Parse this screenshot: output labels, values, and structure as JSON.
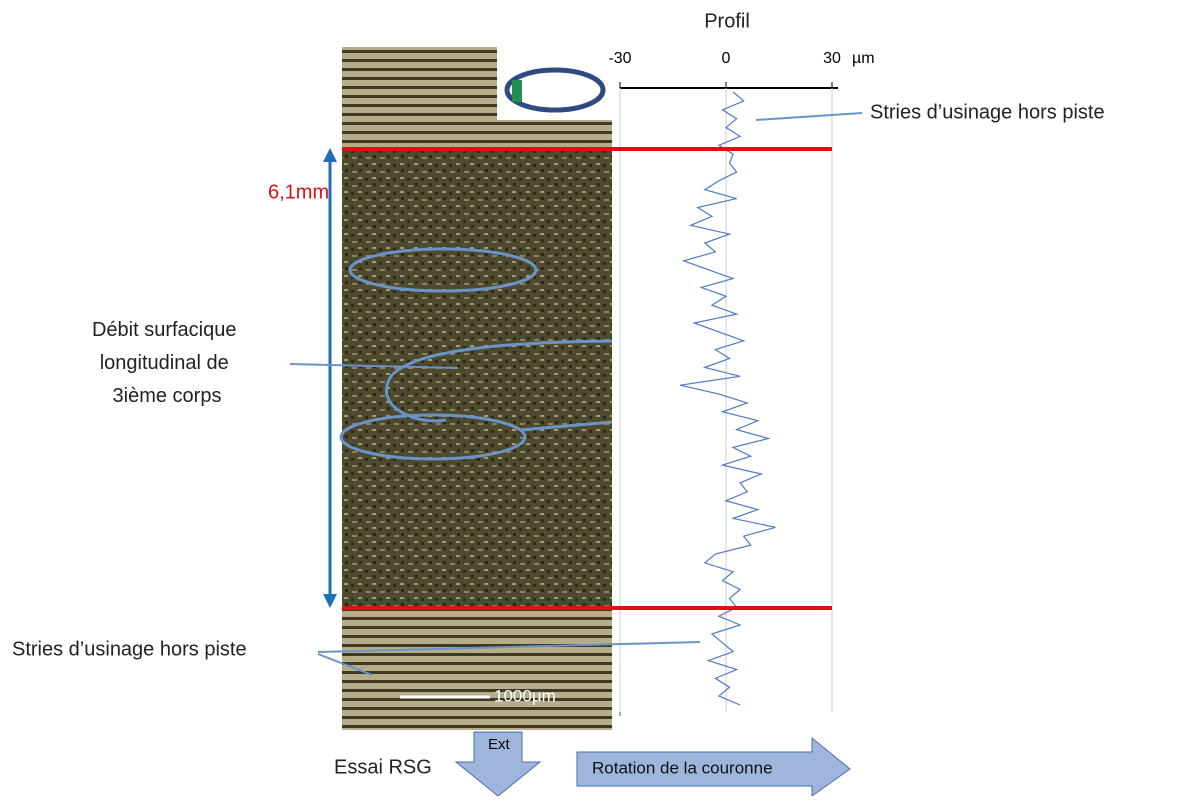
{
  "chart_data": {
    "type": "line",
    "title": "Profil",
    "x_unit": "µm",
    "xlim": [
      -30,
      30
    ],
    "xticks": [
      -30,
      0,
      30
    ],
    "grid": true,
    "color": "#4f7ac7",
    "values": [
      2,
      5,
      -1,
      3,
      0,
      4,
      -2,
      2,
      1,
      3,
      -2,
      -6,
      3,
      -8,
      -4,
      -10,
      1,
      -6,
      -3,
      -12,
      -5,
      2,
      -7,
      0,
      -4,
      3,
      -9,
      -2,
      5,
      -3,
      1,
      -6,
      4,
      -13,
      -2,
      6,
      -1,
      9,
      3,
      12,
      2,
      7,
      -1,
      10,
      4,
      6,
      0,
      9,
      2,
      14,
      5,
      7,
      -3,
      -6,
      2,
      -1,
      4,
      1,
      3,
      -2,
      4,
      -4,
      -1,
      2,
      -5,
      3,
      -3,
      1,
      -2,
      4
    ]
  },
  "annotations": {
    "stries_top": "Stries d’usinage hors piste",
    "stries_bottom": "Stries d’usinage hors piste",
    "width": "6,1mm",
    "debit": [
      "Débit surfacique",
      "longitudinal de",
      "3ième corps"
    ],
    "scale_bar": "1000µm",
    "essai": "Essai RSG",
    "ext": "Ext",
    "rotation": "Rotation de la couronne"
  }
}
